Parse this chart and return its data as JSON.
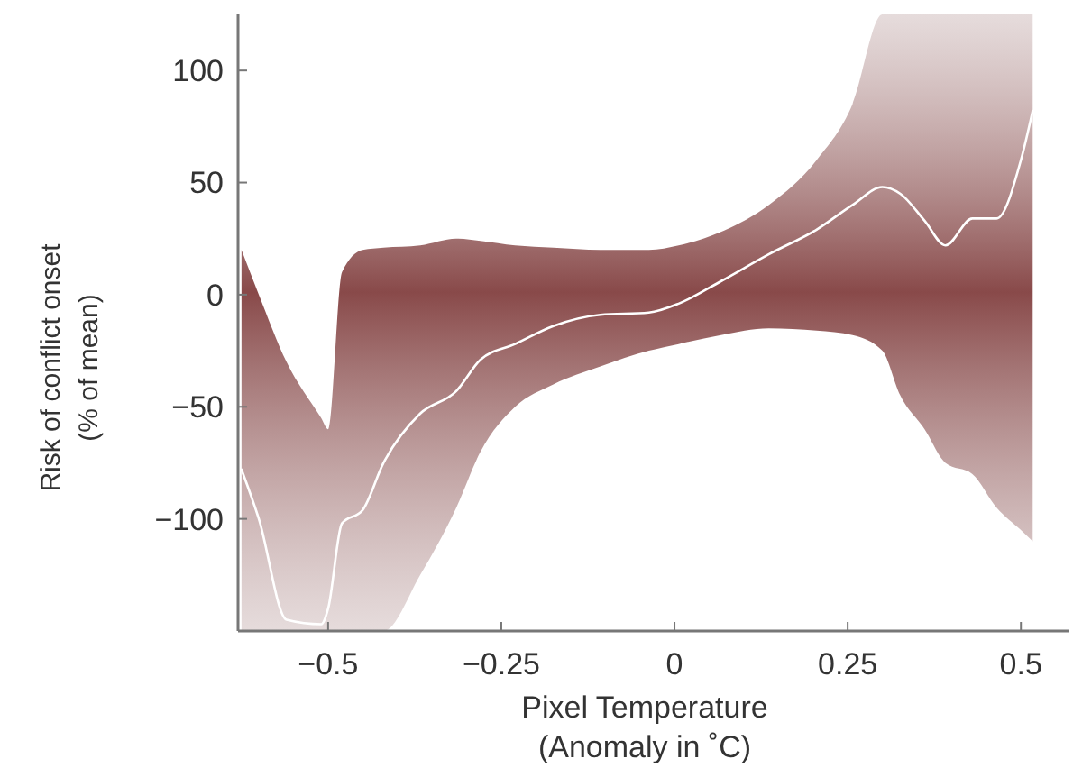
{
  "chart_data": {
    "type": "line",
    "xlabel": "Pixel Temperature\n(Anomaly in ˚C)",
    "ylabel": "Risk of conflict onset\n(% of mean)",
    "xlim": [
      -0.63,
      0.57
    ],
    "xticks": [
      -0.5,
      -0.25,
      0,
      0.25,
      0.5
    ],
    "ylim": [
      -150,
      125
    ],
    "yticks": [
      -100,
      -50,
      0,
      50,
      100
    ],
    "grid": false,
    "marker": "none",
    "line_style": "solid",
    "series": [
      {
        "color": "#ffffff",
        "x": [
          -0.625,
          -0.6,
          -0.56,
          -0.51,
          -0.5,
          -0.48,
          -0.45,
          -0.42,
          -0.367,
          -0.315,
          -0.28,
          -0.23,
          -0.175,
          -0.107,
          -0.037,
          0.006,
          0.067,
          0.136,
          0.205,
          0.257,
          0.3,
          0.326,
          0.361,
          0.391,
          0.43,
          0.465,
          0.5,
          0.517
        ],
        "values": [
          -78,
          -100,
          -145,
          -147,
          -140,
          -102,
          -96,
          -75,
          -53,
          -43,
          -29,
          -22,
          -14,
          -9,
          -8,
          -4,
          6,
          18,
          29,
          40,
          48,
          45,
          33,
          22,
          34,
          34,
          60,
          82
        ],
        "lower": [
          -150,
          -150,
          -150,
          -150,
          -150,
          -150,
          -150,
          -150,
          -125,
          -95,
          -70,
          -50,
          -40,
          -32,
          -25,
          -22,
          -18,
          -15,
          -16,
          -18,
          -25,
          -45,
          -60,
          -75,
          -80,
          -95,
          -105,
          -110
        ],
        "upper": [
          20,
          0,
          -30,
          -55,
          -60,
          10,
          20,
          21,
          22,
          25,
          24,
          22,
          21,
          20,
          20,
          22,
          28,
          40,
          60,
          85,
          125,
          125,
          125,
          125,
          125,
          125,
          125,
          125
        ]
      }
    ]
  }
}
